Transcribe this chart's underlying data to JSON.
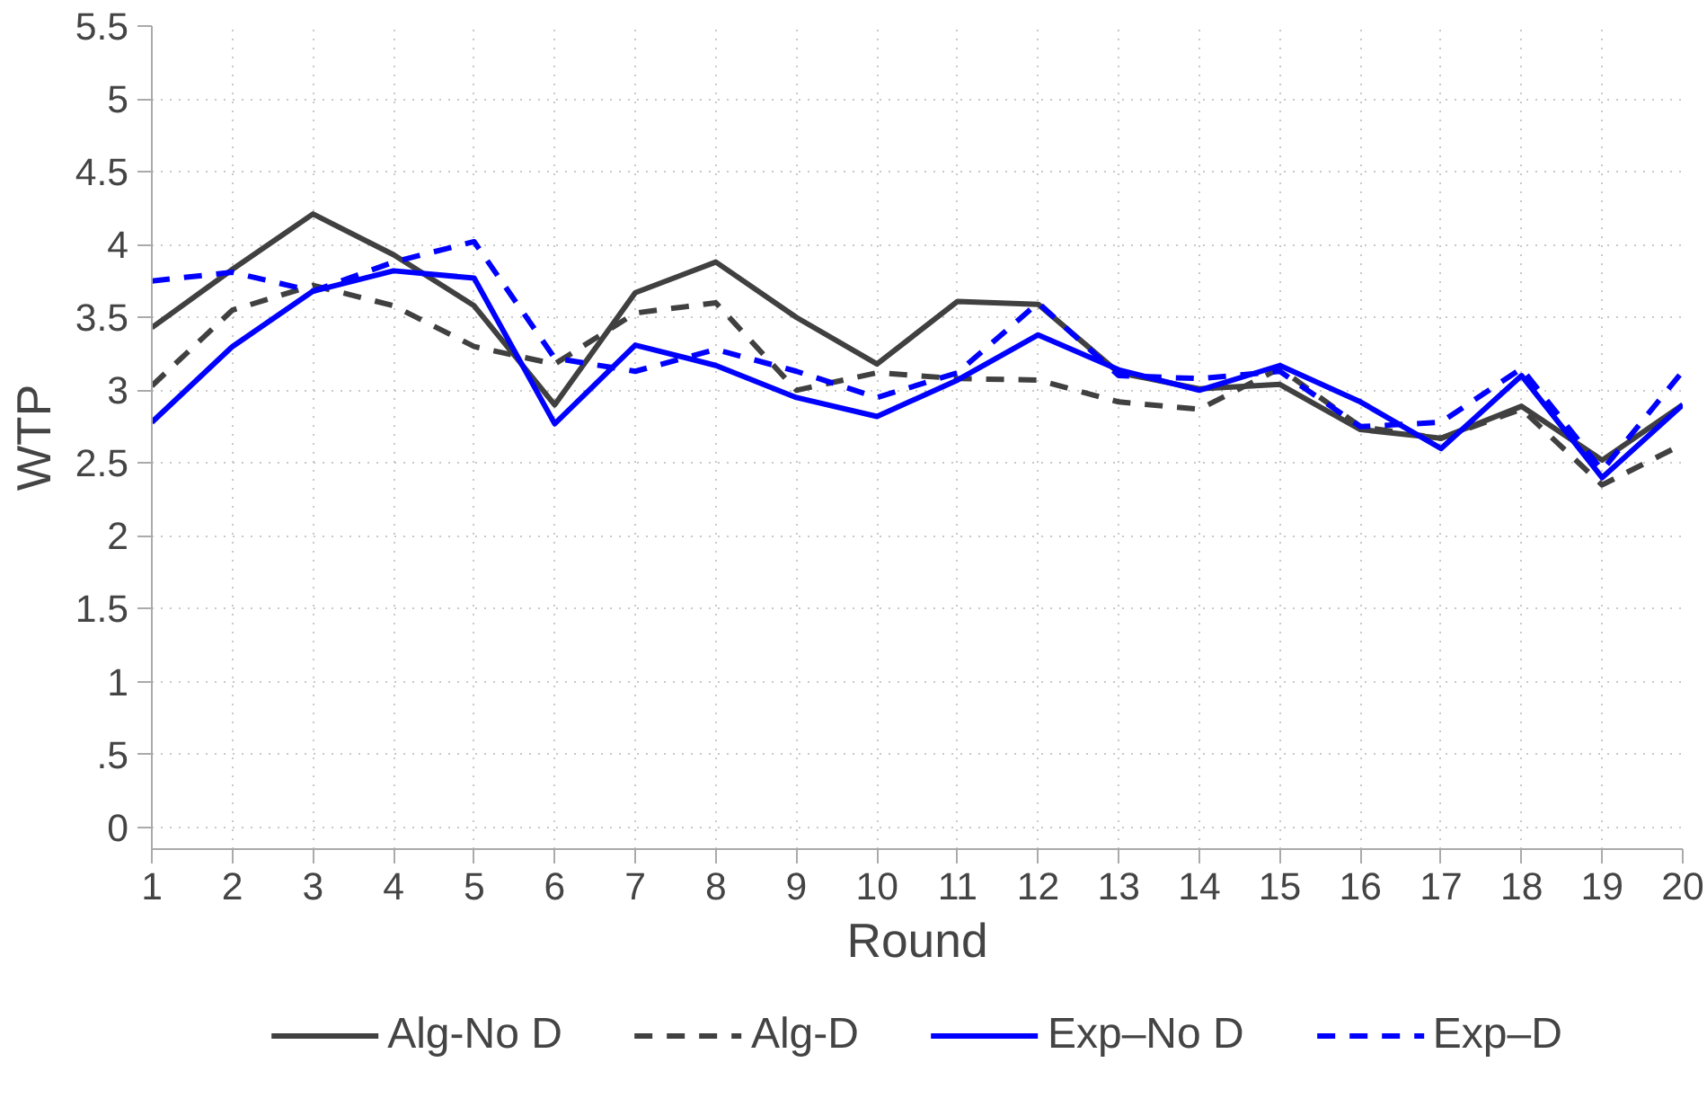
{
  "chart_data": {
    "type": "line",
    "xlabel": "Round",
    "ylabel": "WTP",
    "x": [
      1,
      2,
      3,
      4,
      5,
      6,
      7,
      8,
      9,
      10,
      11,
      12,
      13,
      14,
      15,
      16,
      17,
      18,
      19,
      20
    ],
    "xlim": [
      1,
      20
    ],
    "xticks": [
      1,
      2,
      3,
      4,
      5,
      6,
      7,
      8,
      9,
      10,
      11,
      12,
      13,
      14,
      15,
      16,
      17,
      18,
      19,
      20
    ],
    "ylim": [
      -0.15,
      5.5
    ],
    "yticks": [
      0,
      {
        "value": 0.5,
        "label": ".5"
      },
      1,
      1.5,
      2,
      2.5,
      3,
      3.5,
      4,
      4.5,
      5,
      5.5
    ],
    "grid": true,
    "legend": "bottom",
    "marker": "none",
    "series": [
      {
        "name": "Alg-No D",
        "color": "#404040",
        "line_style": "solid",
        "values": [
          3.43,
          3.83,
          4.21,
          3.93,
          3.58,
          2.9,
          3.67,
          3.88,
          3.5,
          3.18,
          3.61,
          3.59,
          3.12,
          3.01,
          3.04,
          2.73,
          2.67,
          2.89,
          2.52,
          2.9
        ]
      },
      {
        "name": "Alg-D",
        "color": "#404040",
        "line_style": "dashed",
        "values": [
          3.03,
          3.55,
          3.72,
          3.58,
          3.3,
          3.18,
          3.53,
          3.6,
          3.0,
          3.12,
          3.08,
          3.07,
          2.92,
          2.87,
          3.15,
          2.75,
          2.67,
          2.87,
          2.35,
          2.63
        ]
      },
      {
        "name": "Exp–No D",
        "color": "#0000ff",
        "line_style": "solid",
        "values": [
          2.78,
          3.3,
          3.68,
          3.82,
          3.77,
          2.77,
          3.31,
          3.17,
          2.95,
          2.82,
          3.07,
          3.38,
          3.14,
          3.0,
          3.17,
          2.92,
          2.6,
          3.1,
          2.4,
          2.9
        ]
      },
      {
        "name": "Exp–D",
        "color": "#0000ff",
        "line_style": "dashed",
        "values": [
          3.75,
          3.81,
          3.68,
          3.88,
          4.02,
          3.22,
          3.13,
          3.28,
          3.13,
          2.95,
          3.12,
          3.6,
          3.1,
          3.08,
          3.13,
          2.75,
          2.78,
          3.15,
          2.45,
          3.13
        ]
      }
    ]
  }
}
